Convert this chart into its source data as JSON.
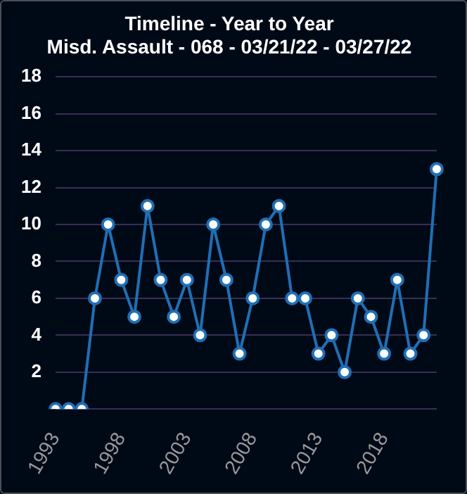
{
  "chart_data": {
    "type": "line",
    "title": "Timeline - Year to Year",
    "subtitle": "Misd. Assault - 068 - 03/21/22 - 03/27/22",
    "categories": [
      "1993",
      null,
      null,
      null,
      null,
      "1998",
      null,
      null,
      null,
      null,
      "2003",
      null,
      null,
      null,
      null,
      "2008",
      null,
      null,
      null,
      null,
      "2013",
      null,
      null,
      null,
      null,
      "2018",
      null,
      null,
      null,
      null
    ],
    "series": [
      {
        "color": "#1f6fb5",
        "values": [
          0,
          0,
          0,
          6,
          10,
          7,
          5,
          11,
          7,
          5,
          7,
          4,
          10,
          7,
          3,
          6,
          10,
          11,
          6,
          6,
          3,
          4,
          2,
          6,
          5,
          3,
          7,
          3,
          4,
          13
        ]
      }
    ],
    "ylim": [
      0,
      18
    ],
    "yticks": [
      {
        "value": 0,
        "label": null
      },
      2,
      4,
      6,
      8,
      10,
      12,
      14,
      16,
      18
    ],
    "grid": "y",
    "legend": false,
    "marker": "circle",
    "line_style": "solid"
  }
}
